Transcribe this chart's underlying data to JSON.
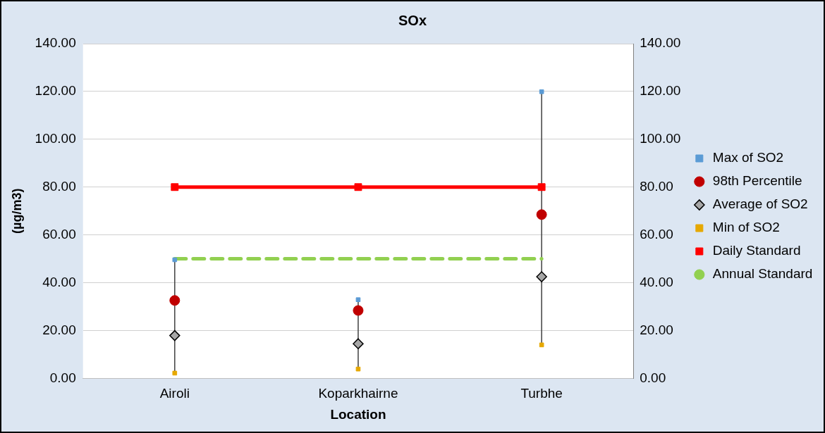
{
  "chart_data": {
    "type": "scatter",
    "title": "SOx",
    "xlabel": "Location",
    "ylabel": "(µg/m3)",
    "categories": [
      "Airoli",
      "Koparkhairne",
      "Turbhe"
    ],
    "series": [
      {
        "name": "Max of SO2",
        "color": "#5b9bd5",
        "marker": "square",
        "values": [
          49.6,
          32.9,
          119.9
        ]
      },
      {
        "name": "98th Percentile",
        "color": "#c00000",
        "marker": "circle",
        "values": [
          32.6,
          28.4,
          68.5
        ]
      },
      {
        "name": "Average of SO2",
        "color": "#a6a6a6",
        "marker": "diamond",
        "values": [
          17.9,
          14.5,
          42.5
        ]
      },
      {
        "name": "Min of SO2",
        "color": "#e6a800",
        "marker": "square",
        "values": [
          2.2,
          3.9,
          14.0
        ]
      },
      {
        "name": "Daily Standard",
        "type": "line",
        "color": "#ff0000",
        "marker": "square",
        "line_style": "solid",
        "values": [
          80,
          80,
          80
        ]
      },
      {
        "name": "Annual Standard",
        "type": "line",
        "color": "#92d050",
        "marker": "none",
        "line_style": "dashed",
        "values": [
          50,
          50,
          50
        ]
      }
    ],
    "ylim": [
      0,
      140
    ],
    "yticks": [
      {
        "value": 0,
        "label": "0.00"
      },
      {
        "value": 20,
        "label": "20.00"
      },
      {
        "value": 40,
        "label": "40.00"
      },
      {
        "value": 60,
        "label": "60.00"
      },
      {
        "value": 80,
        "label": "80.00"
      },
      {
        "value": 100,
        "label": "100.00"
      },
      {
        "value": 120,
        "label": "120.00"
      },
      {
        "value": 140,
        "label": "140.00"
      }
    ],
    "y2lim": [
      0,
      140
    ],
    "y2ticks": [
      {
        "value": 0,
        "label": "0.00"
      },
      {
        "value": 20,
        "label": "20.00"
      },
      {
        "value": 40,
        "label": "40.00"
      },
      {
        "value": 60,
        "label": "60.00"
      },
      {
        "value": 80,
        "label": "80.00"
      },
      {
        "value": 100,
        "label": "100.00"
      },
      {
        "value": 120,
        "label": "120.00"
      },
      {
        "value": 140,
        "label": "140.00"
      }
    ],
    "grid": "y",
    "legend": "right"
  }
}
